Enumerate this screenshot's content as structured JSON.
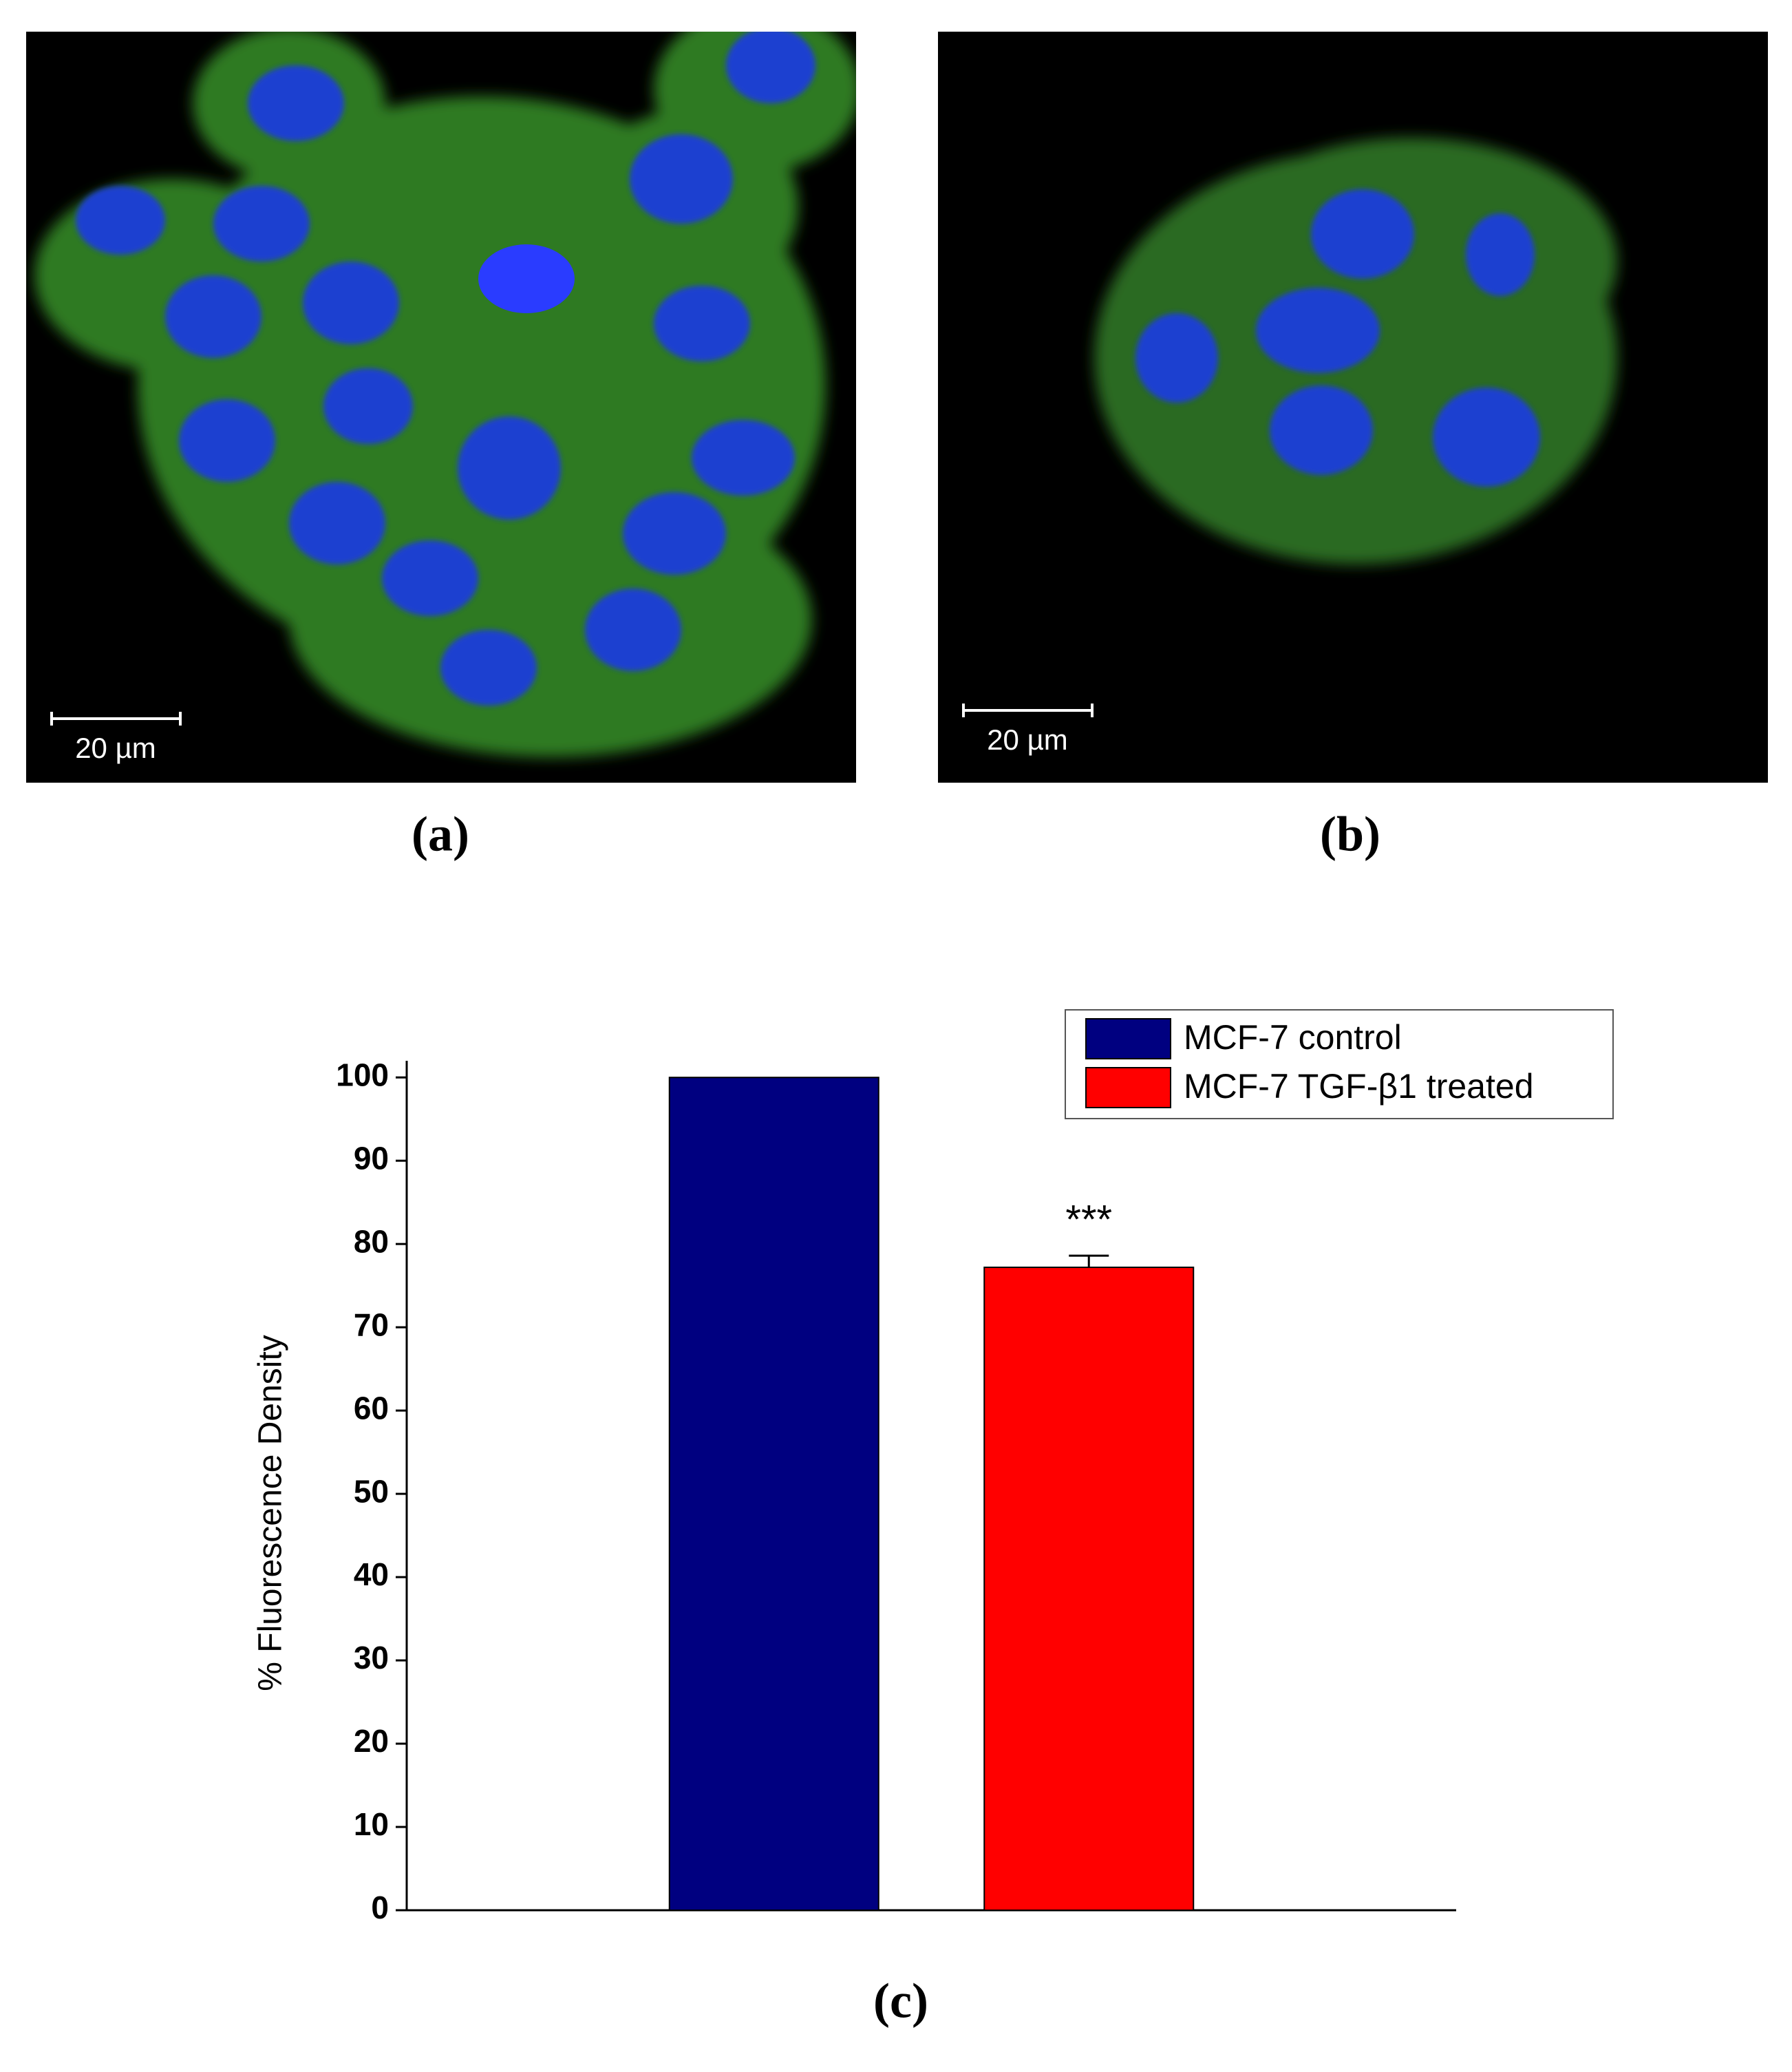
{
  "panels": [
    {
      "label": "(a)",
      "scale_bar": "20 µm"
    },
    {
      "label": "(b)",
      "scale_bar": "20 µm"
    }
  ],
  "chart_data": {
    "type": "bar",
    "panel_label": "(c)",
    "y_label": "% Fluorescence Density",
    "series": [
      {
        "name": "MCF-7 control",
        "color": "#000080",
        "values": [
          100
        ]
      },
      {
        "name": "MCF-7 TGF-β1 treated",
        "color": "#ff0000",
        "values": [
          77.2
        ],
        "errors": [
          1.4
        ],
        "annotation": "***"
      }
    ],
    "ylim": [
      0,
      102
    ],
    "yticks": [
      0,
      10,
      20,
      30,
      40,
      50,
      60,
      70,
      80,
      90,
      100
    ],
    "legend": "upper right"
  }
}
